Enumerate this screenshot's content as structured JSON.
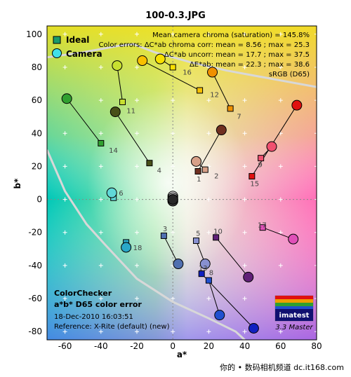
{
  "page": {
    "title": "100-0.3.JPG",
    "footer": "你的 • 数码相机频道 dc.it168.com"
  },
  "legend": {
    "ideal_label": "Ideal",
    "camera_label": "Camera"
  },
  "stats": {
    "line1": "Mean camera chroma (saturation) = 145.8%",
    "line2": "Color errors: ΔC*ab chroma corr:  mean = 8.56 ;  max = 25.3",
    "line3": "ΔC*ab uncorr:  mean = 17.7 ;  max = 37.5",
    "line4": "ΔE*ab:  mean = 22.3 ;  max = 38.6",
    "line5": "sRGB (D65)"
  },
  "info": {
    "title1": "ColorChecker",
    "title2": "a*b* D65 color error",
    "date": "18-Dec-2010 16:03:51",
    "reference": "Reference: X-Rite (default) (new)"
  },
  "logo": {
    "text": "imatest",
    "version": "3.3  Master"
  },
  "colors": {
    "ideal_marker": "#1a9a6a",
    "camera_marker": "#40e0e8",
    "boundary": "#d8d8d8",
    "grid": "#ffffff"
  },
  "chart_data": {
    "type": "scatter",
    "xlabel": "a*",
    "ylabel": "b*",
    "xlim": [
      -70,
      80
    ],
    "ylim": [
      -85,
      105
    ],
    "xticks": [
      -60,
      -40,
      -20,
      0,
      20,
      40,
      60,
      80
    ],
    "yticks": [
      -80,
      -60,
      -40,
      -20,
      0,
      20,
      40,
      60,
      80,
      100
    ],
    "grid": true,
    "legend_position": "top-left",
    "series": [
      {
        "name": "Ideal",
        "marker": "square"
      },
      {
        "name": "Camera",
        "marker": "circle"
      }
    ],
    "patches": [
      {
        "id": "1",
        "ideal": [
          14,
          17
        ],
        "camera": [
          27,
          42
        ],
        "color": "#703020"
      },
      {
        "id": "2",
        "ideal": [
          18,
          18
        ],
        "camera": [
          13,
          23
        ],
        "color": "#d8a088"
      },
      {
        "id": "3",
        "ideal": [
          -5,
          -22
        ],
        "camera": [
          3,
          -39
        ],
        "color": "#5070b0"
      },
      {
        "id": "4",
        "ideal": [
          -13,
          22
        ],
        "camera": [
          -32,
          53
        ],
        "color": "#485018"
      },
      {
        "id": "5",
        "ideal": [
          13,
          -25
        ],
        "camera": [
          18,
          -39
        ],
        "color": "#8890d0"
      },
      {
        "id": "6",
        "ideal": [
          -33,
          1
        ],
        "camera": [
          -34,
          4
        ],
        "color": "#60d8d8"
      },
      {
        "id": "7",
        "ideal": [
          32,
          55
        ],
        "camera": [
          22,
          77
        ],
        "color": "#f09000"
      },
      {
        "id": "8",
        "ideal": [
          20,
          -49
        ],
        "camera": [
          26,
          -70
        ],
        "color": "#2050d0"
      },
      {
        "id": "9",
        "ideal": [
          49,
          25
        ],
        "camera": [
          55,
          32
        ],
        "color": "#f05070"
      },
      {
        "id": "10",
        "ideal": [
          24,
          -23
        ],
        "camera": [
          42,
          -47
        ],
        "color": "#602078"
      },
      {
        "id": "11",
        "ideal": [
          -28,
          59
        ],
        "camera": [
          -31,
          81
        ],
        "color": "#c8e030"
      },
      {
        "id": "12",
        "ideal": [
          15,
          66
        ],
        "camera": [
          -17,
          84
        ],
        "color": "#f8c000"
      },
      {
        "id": "13",
        "ideal": [
          16,
          -45
        ],
        "camera": [
          45,
          -78
        ],
        "color": "#1020c0"
      },
      {
        "id": "14",
        "ideal": [
          -40,
          34
        ],
        "camera": [
          -59,
          61
        ],
        "color": "#30a030"
      },
      {
        "id": "15",
        "ideal": [
          44,
          14
        ],
        "camera": [
          69,
          57
        ],
        "color": "#e01010"
      },
      {
        "id": "16",
        "ideal": [
          0,
          80
        ],
        "camera": [
          -7,
          85
        ],
        "color": "#f8e000"
      },
      {
        "id": "17",
        "ideal": [
          50,
          -17
        ],
        "camera": [
          67,
          -24
        ],
        "color": "#e050b8"
      },
      {
        "id": "18",
        "ideal": [
          -26,
          -26
        ],
        "camera": [
          -26,
          -29
        ],
        "color": "#2aa8c8"
      },
      {
        "id": "19",
        "ideal": [
          0,
          0
        ],
        "camera": [
          0,
          2
        ],
        "color": "#ffffff"
      },
      {
        "id": "20",
        "ideal": [
          0,
          0
        ],
        "camera": [
          0,
          1
        ],
        "color": "#c8c8c8"
      },
      {
        "id": "21",
        "ideal": [
          0,
          0
        ],
        "camera": [
          0,
          0
        ],
        "color": "#a0a0a0"
      },
      {
        "id": "22",
        "ideal": [
          0,
          0
        ],
        "camera": [
          0,
          -1
        ],
        "color": "#787878"
      },
      {
        "id": "23",
        "ideal": [
          0,
          0
        ],
        "camera": [
          0,
          -1
        ],
        "color": "#505050"
      },
      {
        "id": "24",
        "ideal": [
          0,
          0
        ],
        "camera": [
          0,
          0
        ],
        "color": "#282828"
      }
    ]
  }
}
